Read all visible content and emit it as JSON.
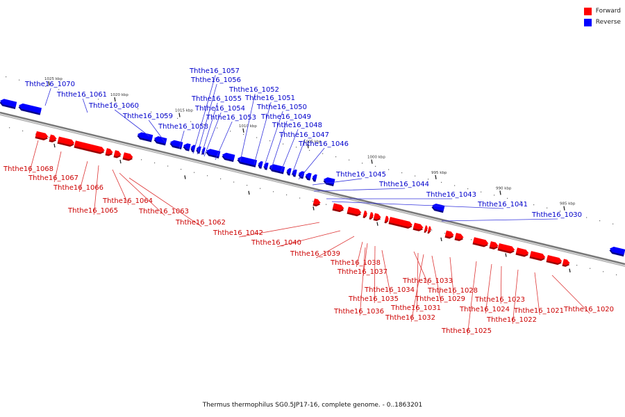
{
  "legend": {
    "forward_label": "Forward",
    "reverse_label": "Reverse",
    "forward_color": "#ff0000",
    "reverse_color": "#0000ff"
  },
  "caption": "Thermus thermophilus SG0.5JP17-16, complete genome. - 0..1863201",
  "colors": {
    "forward_gene": "#ff0000",
    "reverse_gene": "#0000ff",
    "forward_label": "#cc0000",
    "reverse_label": "#0000cc",
    "backbone": "#777777"
  },
  "ticks": [
    "1025 kbp",
    "1020 kbp",
    "1015 kbp",
    "1010 kbp",
    "1005 kbp",
    "1000 kbp",
    "995 kbp",
    "990 kbp",
    "985 kbp"
  ],
  "reverse_genes": [
    "Ththe16_1070",
    "Ththe16_1061",
    "Ththe16_1060",
    "Ththe16_1059",
    "Ththe16_1058",
    "Ththe16_1057",
    "Ththe16_1056",
    "Ththe16_1055",
    "Ththe16_1054",
    "Ththe16_1053",
    "Ththe16_1052",
    "Ththe16_1051",
    "Ththe16_1050",
    "Ththe16_1049",
    "Ththe16_1048",
    "Ththe16_1047",
    "Ththe16_1046",
    "Ththe16_1045",
    "Ththe16_1044",
    "Ththe16_1043",
    "Ththe16_1041",
    "Ththe16_1030"
  ],
  "forward_genes": [
    "Ththe16_1068",
    "Ththe16_1067",
    "Ththe16_1066",
    "Ththe16_1065",
    "Ththe16_1064",
    "Ththe16_1063",
    "Ththe16_1062",
    "Ththe16_1042",
    "Ththe16_1040",
    "Ththe16_1039",
    "Ththe16_1038",
    "Ththe16_1037",
    "Ththe16_1035",
    "Ththe16_1036",
    "Ththe16_1034",
    "Ththe16_1033",
    "Ththe16_1031",
    "Ththe16_1032",
    "Ththe16_1029",
    "Ththe16_1028",
    "Ththe16_1025",
    "Ththe16_1024",
    "Ththe16_1023",
    "Ththe16_1022",
    "Ththe16_1021",
    "Ththe16_1020"
  ]
}
